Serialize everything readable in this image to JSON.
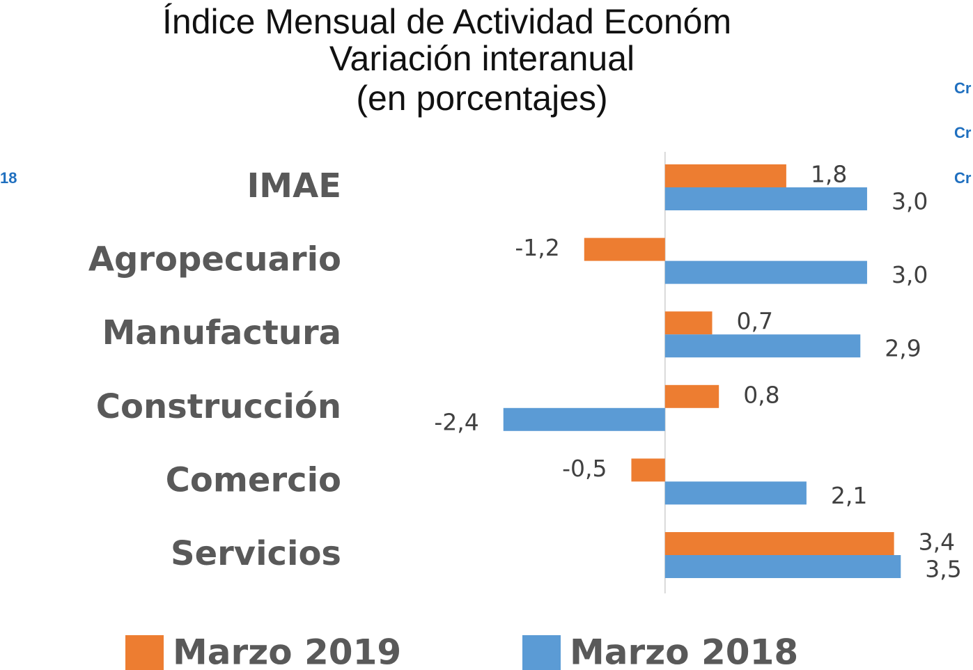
{
  "chart_data": {
    "type": "hbar",
    "title": "Índice Mensual de Actividad Económ",
    "subtitle": [
      "Variación interanual",
      "(en porcentajes)"
    ],
    "categories": [
      "IMAE",
      "Agropecuario",
      "Manufactura",
      "Construcción",
      "Comercio",
      "Servicios"
    ],
    "series": [
      {
        "name": "Marzo 2019",
        "color": "#ed7d31",
        "values": [
          1.8,
          -1.2,
          0.7,
          0.8,
          -0.5,
          3.4
        ],
        "value_labels": [
          "1,8",
          "-1,2",
          "0,7",
          "0,8",
          "-0,5",
          "3,4"
        ]
      },
      {
        "name": "Marzo 2018",
        "color": "#5b9bd5",
        "values": [
          3.0,
          3.0,
          2.9,
          -2.4,
          2.1,
          3.5
        ],
        "value_labels": [
          "3,0",
          "3,0",
          "2,9",
          "-2,4",
          "2,1",
          "3,5"
        ]
      }
    ],
    "xlim": [
      -4,
      4.5
    ],
    "annotations": [
      "18",
      "Cr",
      "Cr",
      "Cr"
    ]
  }
}
